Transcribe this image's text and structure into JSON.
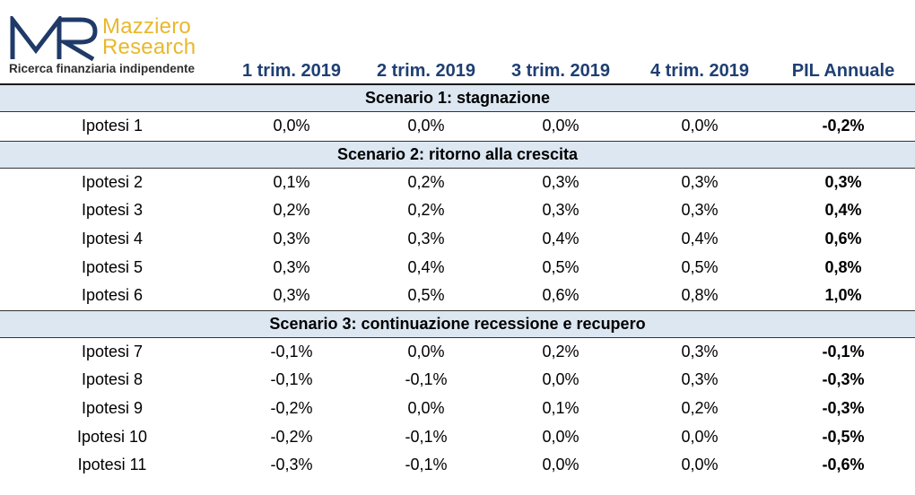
{
  "logo": {
    "monogram": "MR",
    "name_line1": "Mazziero",
    "name_line2": "Research",
    "tagline": "Ricerca finanziaria indipendente",
    "colors": {
      "monogram": "#1f3a68",
      "name": "#e8b82c"
    }
  },
  "table": {
    "columns": [
      "",
      "1 trim. 2019",
      "2 trim. 2019",
      "3 trim. 2019",
      "4 trim. 2019",
      "PIL Annuale"
    ],
    "scenarios": [
      {
        "title": "Scenario 1: stagnazione",
        "rows": [
          {
            "label": "Ipotesi 1",
            "q1": "0,0%",
            "q2": "0,0%",
            "q3": "0,0%",
            "q4": "0,0%",
            "pil": "-0,2%"
          }
        ]
      },
      {
        "title": "Scenario 2: ritorno alla crescita",
        "rows": [
          {
            "label": "Ipotesi 2",
            "q1": "0,1%",
            "q2": "0,2%",
            "q3": "0,3%",
            "q4": "0,3%",
            "pil": "0,3%"
          },
          {
            "label": "Ipotesi 3",
            "q1": "0,2%",
            "q2": "0,2%",
            "q3": "0,3%",
            "q4": "0,3%",
            "pil": "0,4%"
          },
          {
            "label": "Ipotesi 4",
            "q1": "0,3%",
            "q2": "0,3%",
            "q3": "0,4%",
            "q4": "0,4%",
            "pil": "0,6%"
          },
          {
            "label": "Ipotesi 5",
            "q1": "0,3%",
            "q2": "0,4%",
            "q3": "0,5%",
            "q4": "0,5%",
            "pil": "0,8%"
          },
          {
            "label": "Ipotesi 6",
            "q1": "0,3%",
            "q2": "0,5%",
            "q3": "0,6%",
            "q4": "0,8%",
            "pil": "1,0%"
          }
        ]
      },
      {
        "title": "Scenario 3: continuazione recessione e recupero",
        "rows": [
          {
            "label": "Ipotesi 7",
            "q1": "-0,1%",
            "q2": "0,0%",
            "q3": "0,2%",
            "q4": "0,3%",
            "pil": "-0,1%"
          },
          {
            "label": "Ipotesi 8",
            "q1": "-0,1%",
            "q2": "-0,1%",
            "q3": "0,0%",
            "q4": "0,3%",
            "pil": "-0,3%"
          },
          {
            "label": "Ipotesi 9",
            "q1": "-0,2%",
            "q2": "0,0%",
            "q3": "0,1%",
            "q4": "0,2%",
            "pil": "-0,3%"
          },
          {
            "label": "Ipotesi 10",
            "q1": "-0,2%",
            "q2": "-0,1%",
            "q3": "0,0%",
            "q4": "0,0%",
            "pil": "-0,5%"
          },
          {
            "label": "Ipotesi 11",
            "q1": "-0,3%",
            "q2": "-0,1%",
            "q3": "0,0%",
            "q4": "0,0%",
            "pil": "-0,6%"
          }
        ]
      }
    ]
  },
  "colors": {
    "header_text": "#1f3f73",
    "scenario_band": "#dce7f2"
  }
}
